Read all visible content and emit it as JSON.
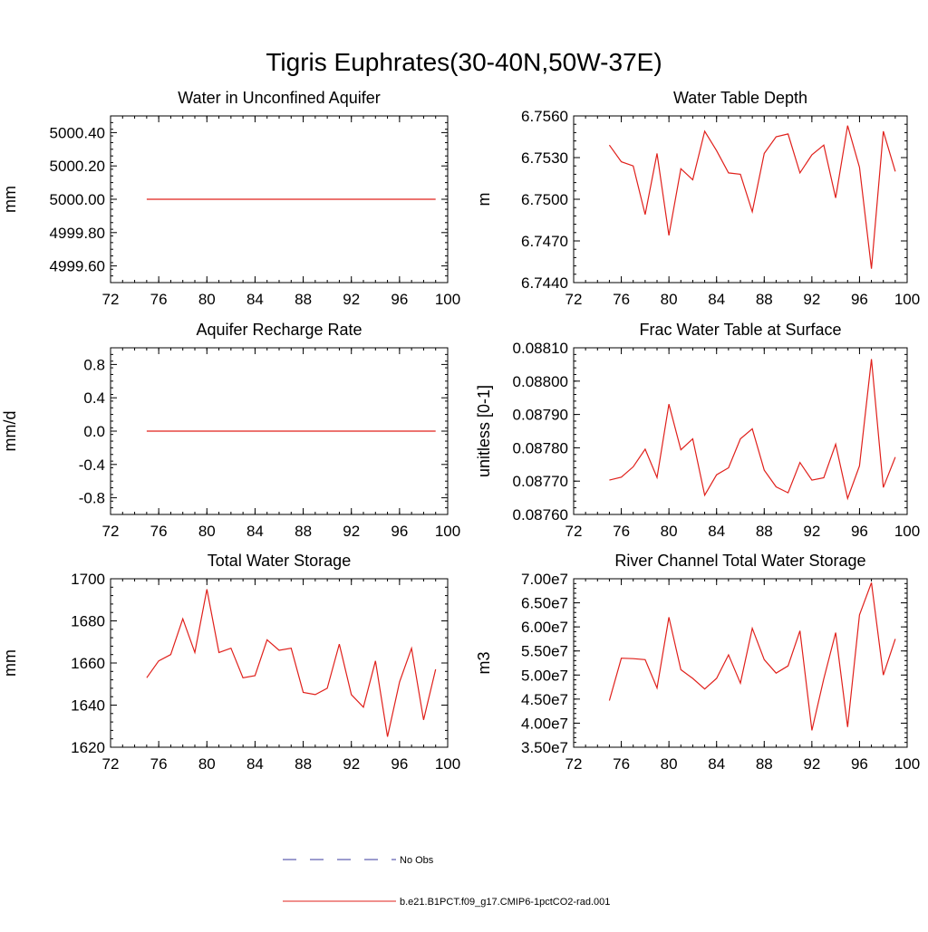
{
  "page": {
    "title": "Tigris Euphrates(30-40N,50W-37E)"
  },
  "legend": {
    "entries": [
      {
        "label": "No Obs",
        "color": "#3a3a9e",
        "dashed": true
      },
      {
        "label": "b.e21.B1PCT.f09_g17.CMIP6-1pctCO2-rad.001",
        "color": "#e0201b",
        "dashed": false
      }
    ]
  },
  "colors": {
    "series": "#e0201b",
    "axis": "#000000"
  },
  "chart_data": [
    {
      "type": "line",
      "title": "Water in Unconfined Aquifer",
      "ylabel": "mm",
      "xlim": [
        72,
        100
      ],
      "ylim": [
        4999.5,
        5000.5
      ],
      "xticks": [
        72,
        76,
        80,
        84,
        88,
        92,
        96,
        100
      ],
      "xtick_labels": [
        "72",
        "76",
        "80",
        "84",
        "88",
        "92",
        "96",
        "100"
      ],
      "yticks": [
        4999.6,
        4999.8,
        5000.0,
        5000.2,
        5000.4
      ],
      "ytick_labels": [
        "4999.60",
        "4999.80",
        "5000.00",
        "5000.20",
        "5000.40"
      ],
      "x": [
        75,
        99
      ],
      "series": [
        {
          "values": [
            5000.0,
            5000.0
          ]
        }
      ]
    },
    {
      "type": "line",
      "title": "Water Table Depth",
      "ylabel": "m",
      "xlim": [
        72,
        100
      ],
      "ylim": [
        6.744,
        6.756
      ],
      "xticks": [
        72,
        76,
        80,
        84,
        88,
        92,
        96,
        100
      ],
      "xtick_labels": [
        "72",
        "76",
        "80",
        "84",
        "88",
        "92",
        "96",
        "100"
      ],
      "yticks": [
        6.744,
        6.747,
        6.75,
        6.753,
        6.756
      ],
      "ytick_labels": [
        "6.7440",
        "6.7470",
        "6.7500",
        "6.7530",
        "6.7560"
      ],
      "x": [
        75,
        76,
        77,
        78,
        79,
        80,
        81,
        82,
        83,
        84,
        85,
        86,
        87,
        88,
        89,
        90,
        91,
        92,
        93,
        94,
        95,
        96,
        97,
        98,
        99
      ],
      "series": [
        {
          "values": [
            6.7539,
            6.7527,
            6.7524,
            6.7489,
            6.7533,
            6.7474,
            6.7522,
            6.7514,
            6.7549,
            6.7535,
            6.7519,
            6.7518,
            6.7491,
            6.7533,
            6.7545,
            6.7547,
            6.7519,
            6.7532,
            6.7539,
            6.7501,
            6.7553,
            6.7523,
            6.745,
            6.7549,
            6.752
          ]
        }
      ]
    },
    {
      "type": "line",
      "title": "Aquifer Recharge Rate",
      "ylabel": "mm/d",
      "xlim": [
        72,
        100
      ],
      "ylim": [
        -1.0,
        1.0
      ],
      "xticks": [
        72,
        76,
        80,
        84,
        88,
        92,
        96,
        100
      ],
      "xtick_labels": [
        "72",
        "76",
        "80",
        "84",
        "88",
        "92",
        "96",
        "100"
      ],
      "yticks": [
        -0.8,
        -0.4,
        0.0,
        0.4,
        0.8
      ],
      "ytick_labels": [
        "-0.8",
        "-0.4",
        "0.0",
        "0.4",
        "0.8"
      ],
      "x": [
        75,
        99
      ],
      "series": [
        {
          "values": [
            0.0,
            0.0
          ]
        }
      ]
    },
    {
      "type": "line",
      "title": "Frac Water Table at Surface",
      "ylabel": "unitless [0-1]",
      "xlim": [
        72,
        100
      ],
      "ylim": [
        0.0876,
        0.0881
      ],
      "xticks": [
        72,
        76,
        80,
        84,
        88,
        92,
        96,
        100
      ],
      "xtick_labels": [
        "72",
        "76",
        "80",
        "84",
        "88",
        "92",
        "96",
        "100"
      ],
      "yticks": [
        0.0876,
        0.0877,
        0.0878,
        0.0879,
        0.088,
        0.0881
      ],
      "ytick_labels": [
        "0.08760",
        "0.08770",
        "0.08780",
        "0.08790",
        "0.08800",
        "0.08810"
      ],
      "x": [
        75,
        76,
        77,
        78,
        79,
        80,
        81,
        82,
        83,
        84,
        85,
        86,
        87,
        88,
        89,
        90,
        91,
        92,
        93,
        94,
        95,
        96,
        97,
        98,
        99
      ],
      "series": [
        {
          "values": [
            0.087703,
            0.087712,
            0.087743,
            0.087796,
            0.087711,
            0.087931,
            0.087794,
            0.087827,
            0.087658,
            0.087719,
            0.08774,
            0.087827,
            0.087857,
            0.087733,
            0.087683,
            0.087665,
            0.087756,
            0.087703,
            0.08771,
            0.087811,
            0.087648,
            0.087746,
            0.088066,
            0.087681,
            0.087772
          ]
        }
      ]
    },
    {
      "type": "line",
      "title": "Total Water Storage",
      "ylabel": "mm",
      "xlim": [
        72,
        100
      ],
      "ylim": [
        1620,
        1700
      ],
      "xticks": [
        72,
        76,
        80,
        84,
        88,
        92,
        96,
        100
      ],
      "xtick_labels": [
        "72",
        "76",
        "80",
        "84",
        "88",
        "92",
        "96",
        "100"
      ],
      "yticks": [
        1620,
        1640,
        1660,
        1680,
        1700
      ],
      "ytick_labels": [
        "1620",
        "1640",
        "1660",
        "1680",
        "1700"
      ],
      "x": [
        75,
        76,
        77,
        78,
        79,
        80,
        81,
        82,
        83,
        84,
        85,
        86,
        87,
        88,
        89,
        90,
        91,
        92,
        93,
        94,
        95,
        96,
        97,
        98,
        99
      ],
      "series": [
        {
          "values": [
            1653,
            1661,
            1664,
            1681,
            1665,
            1695,
            1665,
            1667,
            1653,
            1654,
            1671,
            1666,
            1667,
            1646,
            1645,
            1648,
            1669,
            1645,
            1639,
            1661,
            1625,
            1651,
            1667,
            1633,
            1657
          ]
        }
      ]
    },
    {
      "type": "line",
      "title": "River Channel Total Water Storage",
      "ylabel": "m3",
      "xlim": [
        72,
        100
      ],
      "ylim": [
        35000000,
        70000000
      ],
      "xticks": [
        72,
        76,
        80,
        84,
        88,
        92,
        96,
        100
      ],
      "xtick_labels": [
        "72",
        "76",
        "80",
        "84",
        "88",
        "92",
        "96",
        "100"
      ],
      "yticks": [
        35000000,
        40000000,
        45000000,
        50000000,
        55000000,
        60000000,
        65000000,
        70000000
      ],
      "ytick_labels": [
        "3.50e7",
        "4.00e7",
        "4.50e7",
        "5.00e7",
        "5.50e7",
        "6.00e7",
        "6.50e7",
        "7.00e7"
      ],
      "x": [
        75,
        76,
        77,
        78,
        79,
        80,
        81,
        82,
        83,
        84,
        85,
        86,
        87,
        88,
        89,
        90,
        91,
        92,
        93,
        94,
        95,
        96,
        97,
        98,
        99
      ],
      "series": [
        {
          "values": [
            44700000,
            53500000,
            53400000,
            53200000,
            47300000,
            62000000,
            51100000,
            49300000,
            47100000,
            49300000,
            54200000,
            48300000,
            59700000,
            53200000,
            50400000,
            51900000,
            59200000,
            38500000,
            49200000,
            58800000,
            39200000,
            62500000,
            69200000,
            50000000,
            57500000
          ]
        }
      ]
    }
  ]
}
